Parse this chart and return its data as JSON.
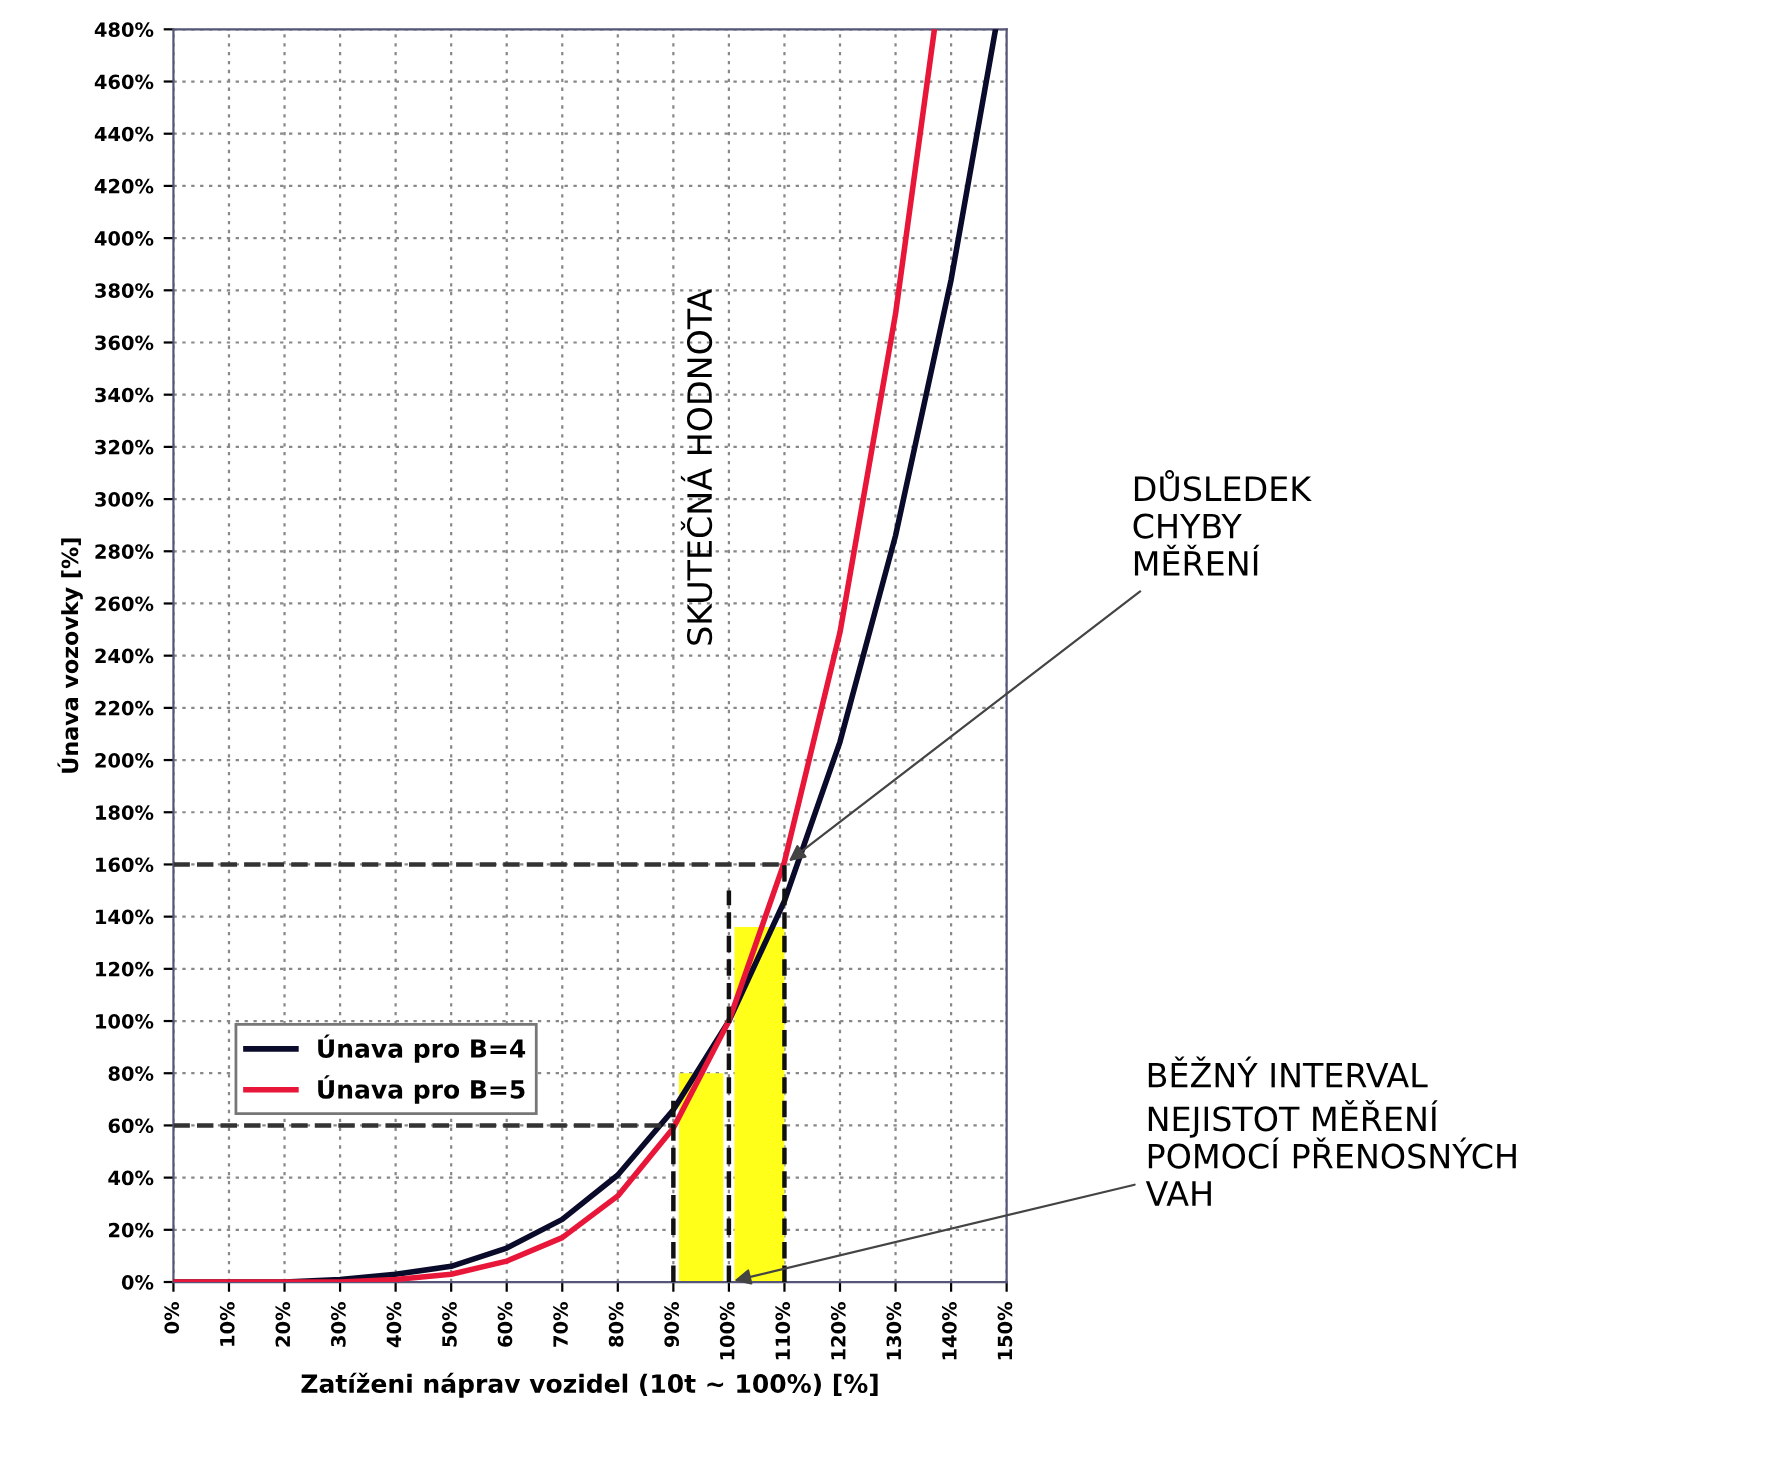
{
  "chart_data": {
    "type": "line",
    "xlabel": "Zatíženi náprav vozidel (10t ~ 100%) [%]",
    "ylabel": "Únava vozovky [%]",
    "xlim": [
      0,
      150
    ],
    "ylim": [
      0,
      480
    ],
    "xticks": [
      {
        "value": 0,
        "label": "0%"
      },
      {
        "value": 10,
        "label": "10%"
      },
      {
        "value": 20,
        "label": "20%"
      },
      {
        "value": 30,
        "label": "30%"
      },
      {
        "value": 40,
        "label": "40%"
      },
      {
        "value": 50,
        "label": "50%"
      },
      {
        "value": 60,
        "label": "60%"
      },
      {
        "value": 70,
        "label": "70%"
      },
      {
        "value": 80,
        "label": "80%"
      },
      {
        "value": 90,
        "label": "90%"
      },
      {
        "value": 100,
        "label": "100%"
      },
      {
        "value": 110,
        "label": "110%"
      },
      {
        "value": 120,
        "label": "120%"
      },
      {
        "value": 130,
        "label": "130%"
      },
      {
        "value": 140,
        "label": "140%"
      },
      {
        "value": 150,
        "label": "150%"
      }
    ],
    "yticks": [
      {
        "value": 0,
        "label": "0%"
      },
      {
        "value": 20,
        "label": "20%"
      },
      {
        "value": 40,
        "label": "40%"
      },
      {
        "value": 60,
        "label": "60%"
      },
      {
        "value": 80,
        "label": "80%"
      },
      {
        "value": 100,
        "label": "100%"
      },
      {
        "value": 120,
        "label": "120%"
      },
      {
        "value": 140,
        "label": "140%"
      },
      {
        "value": 160,
        "label": "160%"
      },
      {
        "value": 180,
        "label": "180%"
      },
      {
        "value": 200,
        "label": "200%"
      },
      {
        "value": 220,
        "label": "220%"
      },
      {
        "value": 240,
        "label": "240%"
      },
      {
        "value": 260,
        "label": "260%"
      },
      {
        "value": 280,
        "label": "280%"
      },
      {
        "value": 300,
        "label": "300%"
      },
      {
        "value": 320,
        "label": "320%"
      },
      {
        "value": 340,
        "label": "340%"
      },
      {
        "value": 360,
        "label": "360%"
      },
      {
        "value": 380,
        "label": "380%"
      },
      {
        "value": 400,
        "label": "400%"
      },
      {
        "value": 420,
        "label": "420%"
      },
      {
        "value": 440,
        "label": "440%"
      },
      {
        "value": 460,
        "label": "460%"
      },
      {
        "value": 480,
        "label": "480%"
      }
    ],
    "series": [
      {
        "type": "area",
        "color": "#ffff1a",
        "x": [
          91,
          99
        ],
        "values": [
          80,
          80
        ]
      },
      {
        "type": "area",
        "color": "#ffff1a",
        "x": [
          101,
          110
        ],
        "values": [
          136,
          136
        ]
      },
      {
        "name": "Únava pro B=4",
        "color": "#0a0a2a",
        "x": [
          0,
          10,
          20,
          30,
          40,
          50,
          60,
          70,
          80,
          90,
          100,
          110,
          120,
          130,
          140,
          148
        ],
        "values": [
          0,
          0,
          0,
          1,
          3,
          6,
          13,
          24,
          41,
          66,
          100,
          146,
          207,
          286,
          384,
          480
        ]
      },
      {
        "name": "Únava pro B=5",
        "color": "#e8173a",
        "x": [
          0,
          10,
          20,
          30,
          40,
          50,
          60,
          70,
          80,
          90,
          100,
          110,
          120,
          130,
          137
        ],
        "values": [
          0,
          0,
          0,
          0,
          1,
          3,
          8,
          17,
          33,
          59,
          100,
          161,
          249,
          371,
          480
        ]
      },
      {
        "type": "line",
        "color": "#333333",
        "line_style": "dashed",
        "x": [
          0,
          110
        ],
        "values": [
          160,
          160
        ]
      },
      {
        "type": "line",
        "color": "#333333",
        "line_style": "dashed",
        "x": [
          0,
          90
        ],
        "values": [
          60,
          60
        ]
      },
      {
        "type": "line",
        "color": "#111111",
        "line_style": "dashed",
        "x": [
          90,
          90
        ],
        "values": [
          0,
          70
        ]
      },
      {
        "type": "line",
        "color": "#111111",
        "line_style": "dashed",
        "x": [
          100,
          100
        ],
        "values": [
          0,
          150
        ]
      },
      {
        "type": "line",
        "color": "#111111",
        "line_style": "dashed",
        "x": [
          110,
          110
        ],
        "values": [
          0,
          160
        ]
      }
    ],
    "annotations": [
      "SKUTEČNÁ HODNOTA",
      {
        "text": "DŮSLEDEK\nCHYBY\nMĚŘENÍ",
        "x": 110,
        "y": 160
      },
      {
        "text": "BĚŽNÝ INTERVAL\nNEJISTOT MĚŘENÍ\nPOMOCÍ PŘENOSNÝCH\nVAH",
        "x": 100,
        "y": 0
      }
    ],
    "grid": true,
    "legend": "left",
    "marker": "none",
    "line_style": "solid"
  }
}
